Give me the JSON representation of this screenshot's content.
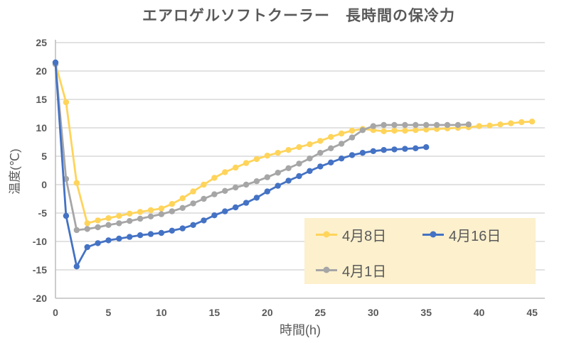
{
  "title": "エアロゲルソフトクーラー　長時間の保冷力",
  "colors": {
    "text": "#595959",
    "gridline": "#D9D9D9",
    "axis_line": "#BFBFBF",
    "legend_background": "#FCF0CD",
    "series_yellow": "#FFD45B",
    "series_blue": "#4472C4",
    "series_gray": "#A6A6A6"
  },
  "legend": {
    "position": "inside-bottom-right",
    "rows": [
      [
        "4月8日",
        "4月16日"
      ],
      [
        "4月1日"
      ]
    ]
  },
  "chart_data": {
    "type": "line",
    "title": "エアロゲルソフトクーラー　長時間の保冷力",
    "xlabel": "時間(h)",
    "ylabel": "温度(℃)",
    "xlim": [
      0,
      46.2
    ],
    "ylim": [
      -20,
      25
    ],
    "x_ticks": [
      0,
      5,
      10,
      15,
      20,
      25,
      30,
      35,
      40,
      45
    ],
    "y_ticks": [
      25,
      20,
      15,
      10,
      5,
      0,
      -5,
      -10,
      -15,
      -20
    ],
    "grid": "horizontal",
    "marker": "circle",
    "draw_order": [
      0,
      2,
      1
    ],
    "series": [
      {
        "name": "4月8日",
        "color": "#FFD45B",
        "points": [
          [
            0,
            21.3
          ],
          [
            1,
            14.5
          ],
          [
            2,
            0.3
          ],
          [
            3,
            -6.8
          ],
          [
            4,
            -6.3
          ],
          [
            5,
            -5.9
          ],
          [
            6,
            -5.5
          ],
          [
            7,
            -5.1
          ],
          [
            8,
            -4.8
          ],
          [
            9,
            -4.5
          ],
          [
            10,
            -4.2
          ],
          [
            11,
            -3.4
          ],
          [
            12,
            -2.4
          ],
          [
            13,
            -1.2
          ],
          [
            14,
            0
          ],
          [
            15,
            1.2
          ],
          [
            16,
            2.2
          ],
          [
            17,
            3
          ],
          [
            18,
            3.8
          ],
          [
            19,
            4.5
          ],
          [
            20,
            5.1
          ],
          [
            21,
            5.6
          ],
          [
            22,
            6.1
          ],
          [
            23,
            6.6
          ],
          [
            24,
            7.1
          ],
          [
            25,
            7.7
          ],
          [
            26,
            8.4
          ],
          [
            27,
            9
          ],
          [
            28,
            9.5
          ],
          [
            29,
            9.8
          ],
          [
            30,
            9.6
          ],
          [
            31,
            9.4
          ],
          [
            32,
            9.5
          ],
          [
            33,
            9.5
          ],
          [
            34,
            9.6
          ],
          [
            35,
            9.7
          ],
          [
            36,
            9.8
          ],
          [
            37,
            9.9
          ],
          [
            38,
            10
          ],
          [
            39,
            10.1
          ],
          [
            40,
            10.3
          ],
          [
            41,
            10.4
          ],
          [
            42,
            10.6
          ],
          [
            43,
            10.8
          ],
          [
            44,
            11
          ],
          [
            45,
            11.1
          ]
        ]
      },
      {
        "name": "4月16日",
        "color": "#4472C4",
        "points": [
          [
            0,
            21.5
          ],
          [
            1,
            -5.5
          ],
          [
            2,
            -14.4
          ],
          [
            3,
            -11
          ],
          [
            4,
            -10.3
          ],
          [
            5,
            -9.8
          ],
          [
            6,
            -9.5
          ],
          [
            7,
            -9.2
          ],
          [
            8,
            -8.9
          ],
          [
            9,
            -8.7
          ],
          [
            10,
            -8.5
          ],
          [
            11,
            -8.1
          ],
          [
            12,
            -7.7
          ],
          [
            13,
            -7.1
          ],
          [
            14,
            -6.3
          ],
          [
            15,
            -5.4
          ],
          [
            16,
            -4.7
          ],
          [
            17,
            -4
          ],
          [
            18,
            -3.2
          ],
          [
            19,
            -2.3
          ],
          [
            20,
            -1.2
          ],
          [
            21,
            -0.2
          ],
          [
            22,
            0.7
          ],
          [
            23,
            1.5
          ],
          [
            24,
            2.4
          ],
          [
            25,
            3.2
          ],
          [
            26,
            3.9
          ],
          [
            27,
            4.6
          ],
          [
            28,
            5.2
          ],
          [
            29,
            5.6
          ],
          [
            30,
            5.9
          ],
          [
            31,
            6.1
          ],
          [
            32,
            6.2
          ],
          [
            33,
            6.3
          ],
          [
            34,
            6.4
          ],
          [
            35,
            6.6
          ]
        ]
      },
      {
        "name": "4月1日",
        "color": "#A6A6A6",
        "points": [
          [
            0,
            21.2
          ],
          [
            1,
            1
          ],
          [
            2,
            -8
          ],
          [
            3,
            -7.8
          ],
          [
            4,
            -7.5
          ],
          [
            5,
            -7.1
          ],
          [
            6,
            -6.8
          ],
          [
            7,
            -6.4
          ],
          [
            8,
            -6
          ],
          [
            9,
            -5.6
          ],
          [
            10,
            -5.2
          ],
          [
            11,
            -4.7
          ],
          [
            12,
            -4.1
          ],
          [
            13,
            -3.3
          ],
          [
            14,
            -2.5
          ],
          [
            15,
            -1.7
          ],
          [
            16,
            -1.1
          ],
          [
            17,
            -0.5
          ],
          [
            18,
            0
          ],
          [
            19,
            0.6
          ],
          [
            20,
            1.3
          ],
          [
            21,
            2.1
          ],
          [
            22,
            2.9
          ],
          [
            23,
            3.7
          ],
          [
            24,
            4.6
          ],
          [
            25,
            5.6
          ],
          [
            26,
            6.4
          ],
          [
            27,
            7.2
          ],
          [
            28,
            8.3
          ],
          [
            29,
            9.6
          ],
          [
            30,
            10.3
          ],
          [
            31,
            10.5
          ],
          [
            32,
            10.5
          ],
          [
            33,
            10.5
          ],
          [
            34,
            10.5
          ],
          [
            35,
            10.5
          ],
          [
            36,
            10.5
          ],
          [
            37,
            10.5
          ],
          [
            38,
            10.5
          ],
          [
            39,
            10.6
          ]
        ]
      }
    ]
  }
}
